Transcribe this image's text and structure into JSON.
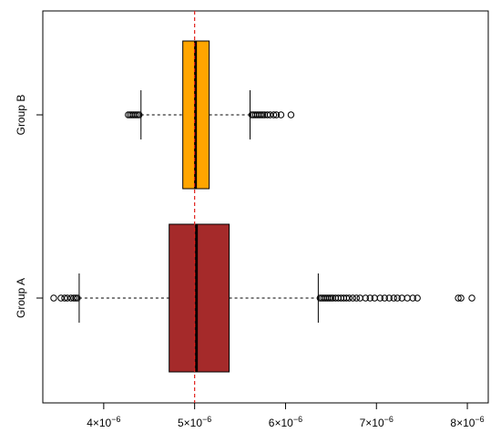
{
  "chart_data": {
    "type": "boxplot",
    "orientation": "horizontal",
    "title": "",
    "xlabel": "",
    "ylabel": "",
    "xlim": [
      3.33e-06,
      8.23e-06
    ],
    "x_ticks": [
      {
        "value": 4e-06,
        "mantissa": "4",
        "times": "×10",
        "exp": "−6"
      },
      {
        "value": 5e-06,
        "mantissa": "5",
        "times": "×10",
        "exp": "−6"
      },
      {
        "value": 6e-06,
        "mantissa": "6",
        "times": "×10",
        "exp": "−6"
      },
      {
        "value": 7e-06,
        "mantissa": "7",
        "times": "×10",
        "exp": "−6"
      },
      {
        "value": 8e-06,
        "mantissa": "8",
        "times": "×10",
        "exp": "−6"
      }
    ],
    "reference_line": {
      "x": 5e-06,
      "color": "#e0201b",
      "style": "dashed"
    },
    "groups": [
      {
        "name": "Group A",
        "color": "#a52a2a",
        "whisker_low": 3.73e-06,
        "q1": 4.72e-06,
        "median": 5.02e-06,
        "q3": 5.38e-06,
        "whisker_high": 6.36e-06,
        "outliers": [
          3.45e-06,
          3.53e-06,
          3.57e-06,
          3.6e-06,
          3.64e-06,
          3.67e-06,
          3.69e-06,
          3.71e-06,
          6.38e-06,
          6.4e-06,
          6.42e-06,
          6.44e-06,
          6.46e-06,
          6.48e-06,
          6.5e-06,
          6.52e-06,
          6.55e-06,
          6.58e-06,
          6.61e-06,
          6.64e-06,
          6.67e-06,
          6.7e-06,
          6.74e-06,
          6.78e-06,
          6.82e-06,
          6.88e-06,
          6.93e-06,
          6.98e-06,
          7.04e-06,
          7.09e-06,
          7.14e-06,
          7.19e-06,
          7.23e-06,
          7.28e-06,
          7.34e-06,
          7.4e-06,
          7.45e-06,
          7.9e-06,
          7.93e-06,
          8.05e-06
        ]
      },
      {
        "name": "Group B",
        "color": "#ffa500",
        "whisker_low": 4.41e-06,
        "q1": 4.87e-06,
        "median": 5.01e-06,
        "q3": 5.16e-06,
        "whisker_high": 5.61e-06,
        "outliers": [
          4.27e-06,
          4.29e-06,
          4.31e-06,
          4.33e-06,
          4.35e-06,
          4.37e-06,
          4.39e-06,
          5.63e-06,
          5.65e-06,
          5.67e-06,
          5.69e-06,
          5.71e-06,
          5.73e-06,
          5.75e-06,
          5.77e-06,
          5.8e-06,
          5.83e-06,
          5.87e-06,
          5.9e-06,
          5.95e-06,
          6.06e-06
        ]
      }
    ]
  }
}
